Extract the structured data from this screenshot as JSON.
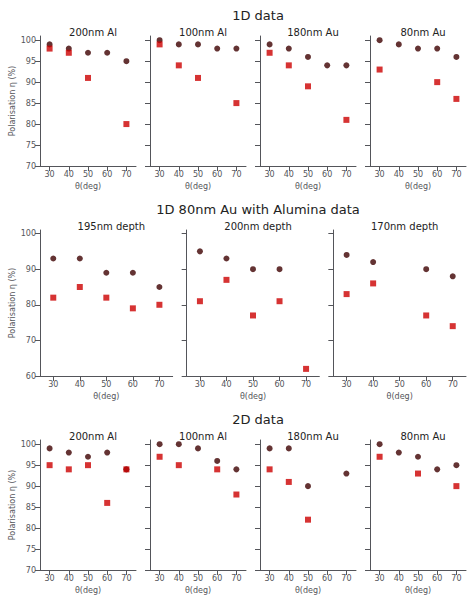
{
  "chart_data": [
    {
      "type": "scatter",
      "annotations": [
        "1D data"
      ],
      "title": "200nm Al",
      "xlabel": "θ(deg)",
      "ylabel": "Polarisation η (%)",
      "x": [
        30,
        40,
        50,
        60,
        70
      ],
      "series": [
        {
          "color": "#3d0000",
          "marker": "circle",
          "values": [
            99,
            98,
            97,
            97,
            95
          ]
        },
        {
          "color": "#cc0000",
          "marker": "square",
          "values": [
            98,
            97,
            91,
            null,
            80
          ]
        }
      ],
      "xlim": [
        25,
        75
      ],
      "xticks": [
        30,
        40,
        50,
        60,
        70
      ],
      "ylim": [
        70,
        101
      ],
      "yticks": [
        70,
        75,
        80,
        85,
        90,
        95,
        100
      ],
      "grid": false
    },
    {
      "type": "scatter",
      "title": "100nm Al",
      "xlabel": "θ(deg)",
      "x": [
        30,
        40,
        50,
        60,
        70
      ],
      "series": [
        {
          "color": "#3d0000",
          "marker": "circle",
          "values": [
            100,
            99,
            99,
            98,
            98
          ]
        },
        {
          "color": "#cc0000",
          "marker": "square",
          "values": [
            99,
            94,
            91,
            null,
            85
          ]
        }
      ],
      "xlim": [
        25,
        75
      ],
      "xticks": [
        30,
        40,
        50,
        60,
        70
      ],
      "ylim": [
        70,
        101
      ],
      "yticks": [
        70,
        75,
        80,
        85,
        90,
        95,
        100
      ],
      "grid": false,
      "tick_labels": "x"
    },
    {
      "type": "scatter",
      "title": "180nm Au",
      "xlabel": "θ(deg)",
      "x": [
        30,
        40,
        50,
        60,
        70
      ],
      "series": [
        {
          "color": "#3d0000",
          "marker": "circle",
          "values": [
            99,
            98,
            96,
            94,
            94
          ]
        },
        {
          "color": "#cc0000",
          "marker": "square",
          "values": [
            97,
            94,
            89,
            null,
            81
          ]
        }
      ],
      "xlim": [
        25,
        75
      ],
      "xticks": [
        30,
        40,
        50,
        60,
        70
      ],
      "ylim": [
        70,
        101
      ],
      "yticks": [
        70,
        75,
        80,
        85,
        90,
        95,
        100
      ],
      "grid": false,
      "tick_labels": "x"
    },
    {
      "type": "scatter",
      "title": "80nm Au",
      "xlabel": "θ(deg)",
      "x": [
        30,
        40,
        50,
        60,
        70
      ],
      "series": [
        {
          "color": "#3d0000",
          "marker": "circle",
          "values": [
            100,
            99,
            98,
            98,
            96
          ]
        },
        {
          "color": "#cc0000",
          "marker": "square",
          "values": [
            93,
            null,
            null,
            90,
            86
          ]
        }
      ],
      "xlim": [
        25,
        75
      ],
      "xticks": [
        30,
        40,
        50,
        60,
        70
      ],
      "ylim": [
        70,
        101
      ],
      "yticks": [
        70,
        75,
        80,
        85,
        90,
        95,
        100
      ],
      "grid": false,
      "tick_labels": "x"
    },
    {
      "type": "scatter",
      "annotations": [
        "1D 80nm Au with Alumina data"
      ],
      "title": "195nm depth",
      "xlabel": "θ(deg)",
      "ylabel": "Polarisation η (%)",
      "x": [
        30,
        40,
        50,
        60,
        70
      ],
      "series": [
        {
          "color": "#3d0000",
          "marker": "circle",
          "values": [
            93,
            93,
            89,
            89,
            85
          ]
        },
        {
          "color": "#cc0000",
          "marker": "square",
          "values": [
            82,
            85,
            82,
            79,
            80
          ]
        }
      ],
      "xlim": [
        25,
        75
      ],
      "xticks": [
        30,
        40,
        50,
        60,
        70
      ],
      "ylim": [
        60,
        101
      ],
      "yticks": [
        60,
        70,
        80,
        90,
        100
      ],
      "grid": false
    },
    {
      "type": "scatter",
      "title": "200nm depth",
      "xlabel": "θ(deg)",
      "x": [
        30,
        40,
        50,
        60,
        70
      ],
      "series": [
        {
          "color": "#3d0000",
          "marker": "circle",
          "values": [
            95,
            93,
            90,
            90,
            null
          ]
        },
        {
          "color": "#cc0000",
          "marker": "square",
          "values": [
            81,
            87,
            77,
            81,
            62
          ]
        }
      ],
      "xlim": [
        25,
        75
      ],
      "xticks": [
        30,
        40,
        50,
        60,
        70
      ],
      "ylim": [
        60,
        101
      ],
      "yticks": [
        60,
        70,
        80,
        90,
        100
      ],
      "grid": false,
      "tick_labels": "x"
    },
    {
      "type": "scatter",
      "title": "170nm depth",
      "xlabel": "θ(deg)",
      "x": [
        30,
        40,
        50,
        60,
        70
      ],
      "series": [
        {
          "color": "#3d0000",
          "marker": "circle",
          "values": [
            94,
            92,
            null,
            90,
            88
          ]
        },
        {
          "color": "#cc0000",
          "marker": "square",
          "values": [
            83,
            86,
            null,
            77,
            74
          ]
        }
      ],
      "xlim": [
        25,
        75
      ],
      "xticks": [
        30,
        40,
        50,
        60,
        70
      ],
      "ylim": [
        60,
        101
      ],
      "yticks": [
        60,
        70,
        80,
        90,
        100
      ],
      "grid": false,
      "tick_labels": "x"
    },
    {
      "type": "scatter",
      "annotations": [
        "2D data"
      ],
      "title": "200nm Al",
      "xlabel": "θ(deg)",
      "ylabel": "Polarisation η (%)",
      "x": [
        30,
        40,
        50,
        60,
        70
      ],
      "series": [
        {
          "color": "#3d0000",
          "marker": "circle",
          "values": [
            99,
            98,
            97,
            98,
            94
          ]
        },
        {
          "color": "#cc0000",
          "marker": "square",
          "values": [
            95,
            94,
            95,
            86,
            94
          ]
        }
      ],
      "xlim": [
        25,
        75
      ],
      "xticks": [
        30,
        40,
        50,
        60,
        70
      ],
      "ylim": [
        70,
        101
      ],
      "yticks": [
        70,
        75,
        80,
        85,
        90,
        95,
        100
      ],
      "grid": false
    },
    {
      "type": "scatter",
      "title": "100nm Al",
      "xlabel": "θ(deg)",
      "x": [
        30,
        40,
        50,
        60,
        70
      ],
      "series": [
        {
          "color": "#3d0000",
          "marker": "circle",
          "values": [
            100,
            100,
            99,
            96,
            94
          ]
        },
        {
          "color": "#cc0000",
          "marker": "square",
          "values": [
            97,
            95,
            null,
            94,
            88
          ]
        }
      ],
      "xlim": [
        25,
        75
      ],
      "xticks": [
        30,
        40,
        50,
        60,
        70
      ],
      "ylim": [
        70,
        101
      ],
      "yticks": [
        70,
        75,
        80,
        85,
        90,
        95,
        100
      ],
      "grid": false,
      "tick_labels": "x"
    },
    {
      "type": "scatter",
      "title": "180nm Au",
      "xlabel": "θ(deg)",
      "x": [
        30,
        40,
        50,
        60,
        70
      ],
      "series": [
        {
          "color": "#3d0000",
          "marker": "circle",
          "values": [
            99,
            99,
            90,
            null,
            93
          ]
        },
        {
          "color": "#cc0000",
          "marker": "square",
          "values": [
            94,
            91,
            82,
            null,
            null
          ]
        }
      ],
      "xlim": [
        25,
        75
      ],
      "xticks": [
        30,
        40,
        50,
        60,
        70
      ],
      "ylim": [
        70,
        101
      ],
      "yticks": [
        70,
        75,
        80,
        85,
        90,
        95,
        100
      ],
      "grid": false,
      "tick_labels": "x"
    },
    {
      "type": "scatter",
      "title": "80nm Au",
      "xlabel": "θ(deg)",
      "x": [
        30,
        40,
        50,
        60,
        70
      ],
      "series": [
        {
          "color": "#3d0000",
          "marker": "circle",
          "values": [
            100,
            98,
            97,
            94,
            95
          ]
        },
        {
          "color": "#cc0000",
          "marker": "square",
          "values": [
            97,
            null,
            93,
            null,
            90
          ]
        }
      ],
      "xlim": [
        25,
        75
      ],
      "xticks": [
        30,
        40,
        50,
        60,
        70
      ],
      "ylim": [
        70,
        101
      ],
      "yticks": [
        70,
        75,
        80,
        85,
        90,
        95,
        100
      ],
      "grid": false,
      "tick_labels": "x"
    }
  ]
}
